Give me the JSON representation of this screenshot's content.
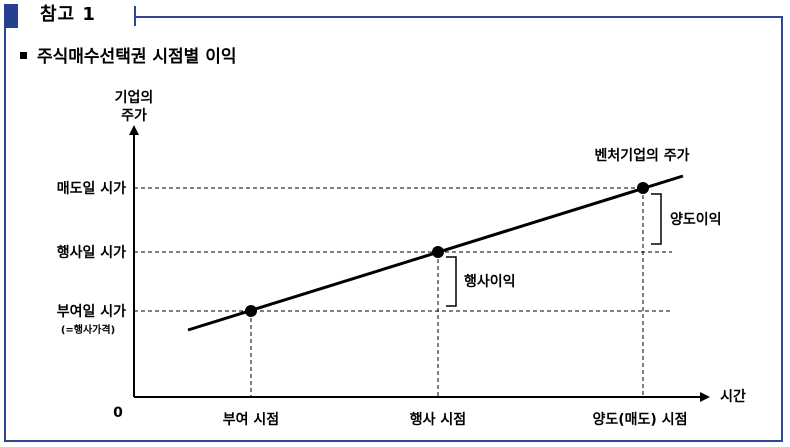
{
  "header": {
    "tab_label": "참고 1",
    "section_title": "주식매수선택권 시점별 이익"
  },
  "diagram": {
    "y_axis_label_line1": "기업의",
    "y_axis_label_line2": "주가",
    "x_axis_label": "시간",
    "origin_label": "0",
    "stock_line_label": "벤처기업의 주가",
    "y_levels": {
      "sell_price": "매도일 시가",
      "exercise_price_label": "행사일 시가",
      "grant_price": "부여일 시가",
      "grant_price_note": "(=행사가격)"
    },
    "x_points": {
      "grant": "부여 시점",
      "exercise": "행사 시점",
      "sell": "양도(매도) 시점"
    },
    "brackets": {
      "exercise_gain": "행사이익",
      "transfer_gain": "양도이익"
    }
  },
  "colors": {
    "frame_border": "#2f4597",
    "tab_block": "#24408e"
  }
}
